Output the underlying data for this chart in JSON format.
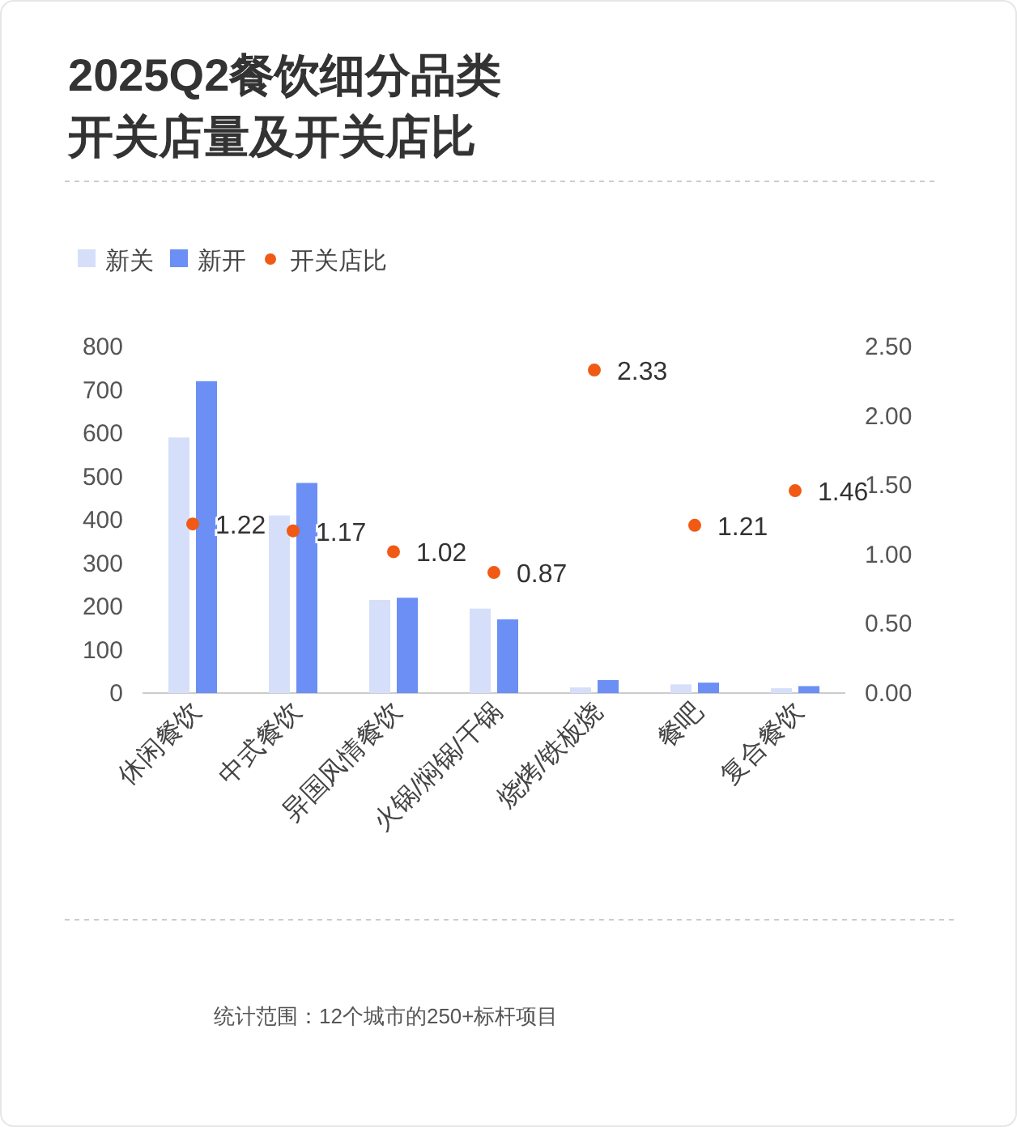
{
  "chart_data": {
    "type": "bar",
    "title": "2025Q2餐饮细分品类",
    "subtitle": "开关店量及开关店比",
    "categories": [
      "休闲餐饮",
      "中式餐饮",
      "异国风情餐饮",
      "火锅/焖锅/干锅",
      "烧烤/铁板烧",
      "餐吧",
      "复合餐饮"
    ],
    "series": [
      {
        "name": "新关",
        "color": "#d6dffa",
        "values": [
          590,
          410,
          215,
          195,
          13,
          20,
          11
        ]
      },
      {
        "name": "新开",
        "color": "#6b8ff5",
        "values": [
          720,
          485,
          220,
          170,
          30,
          24,
          16
        ]
      },
      {
        "name": "开关店比",
        "type": "scatter",
        "axis": "y2",
        "marker": "circle",
        "color": "#f05a14",
        "values": [
          1.22,
          1.17,
          1.02,
          0.87,
          2.33,
          1.21,
          1.46
        ],
        "value_labels": [
          "1.22",
          "1.17",
          "1.02",
          "0.87",
          "2.33",
          "1.21",
          "1.46"
        ]
      }
    ],
    "ylim": [
      0,
      800
    ],
    "yticks": [
      0,
      100,
      200,
      300,
      400,
      500,
      600,
      700,
      800
    ],
    "y2lim": [
      0,
      2.5
    ],
    "y2ticks": [
      {
        "value": 0,
        "label": "0.00"
      },
      {
        "value": 0.5,
        "label": "0.50"
      },
      {
        "value": 1,
        "label": "1.00"
      },
      {
        "value": 1.5,
        "label": "1.50"
      },
      {
        "value": 2,
        "label": "2.00"
      },
      {
        "value": 2.5,
        "label": "2.50"
      }
    ],
    "legend": "top left",
    "annotations": [
      "统计范围：12个城市的250+标杆项目"
    ]
  }
}
